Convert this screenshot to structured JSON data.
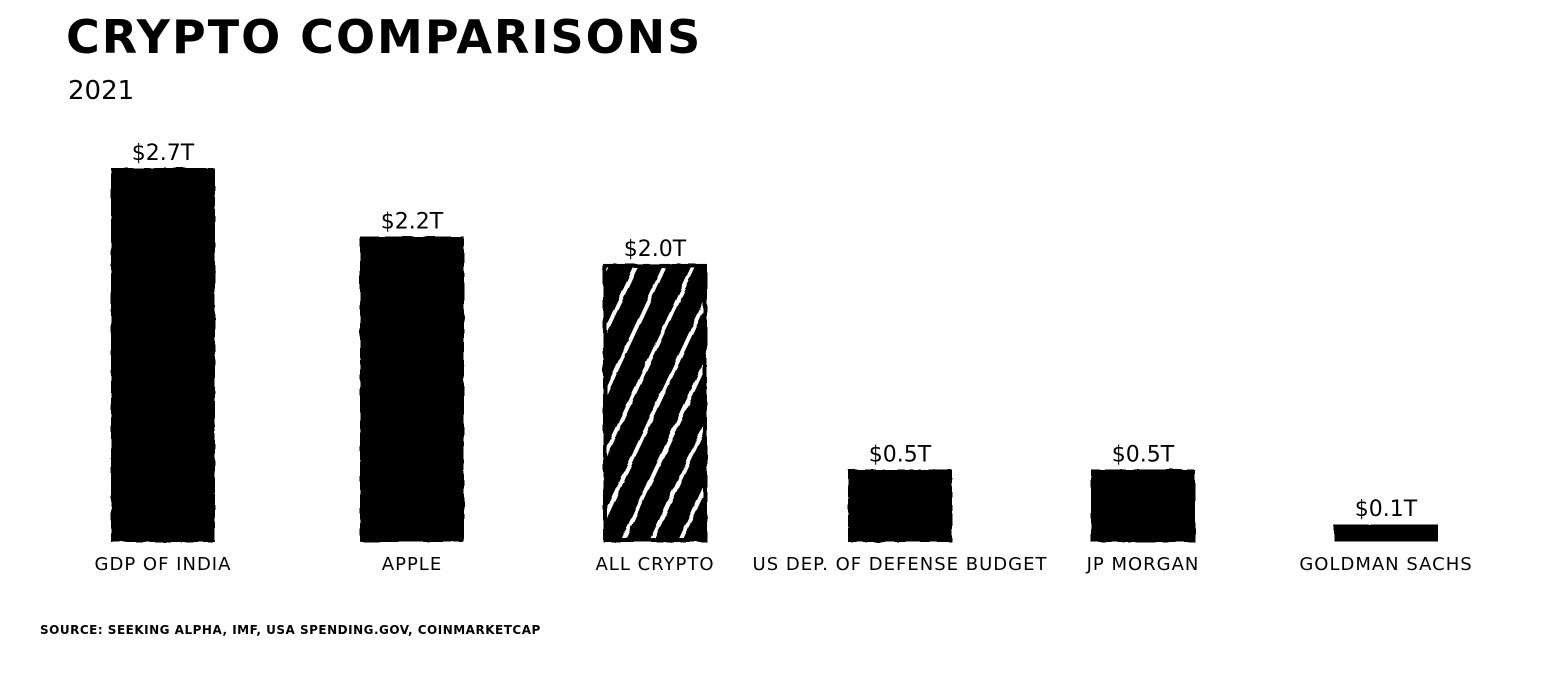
{
  "title": "CRYPTO COMPARISONS",
  "subtitle": "2021",
  "source": "SOURCE: SEEKING ALPHA, IMF, USA SPENDING.GOV, COINMARKETCAP",
  "colors": {
    "bar": "#000000",
    "highlight_stripes": "#ffffff",
    "background": "#ffffff"
  },
  "chart_data": {
    "type": "bar",
    "title": "CRYPTO COMPARISONS",
    "subtitle": "2021",
    "categories": [
      "GDP OF INDIA",
      "APPLE",
      "ALL CRYPTO",
      "US DEP. OF DEFENSE BUDGET",
      "JP MORGAN",
      "GOLDMAN SACHS"
    ],
    "values": [
      2.7,
      2.2,
      2.0,
      0.5,
      0.5,
      0.1
    ],
    "value_labels": [
      "$2.7T",
      "$2.2T",
      "$2.0T",
      "$0.5T",
      "$0.5T",
      "$0.1T"
    ],
    "unit": "trillion USD",
    "highlight_category": "ALL CRYPTO",
    "highlight_style": "diagonal white stripes",
    "xlabel": "",
    "ylabel": "",
    "ylim": [
      0,
      2.7
    ],
    "grid": false,
    "legend": "none"
  }
}
